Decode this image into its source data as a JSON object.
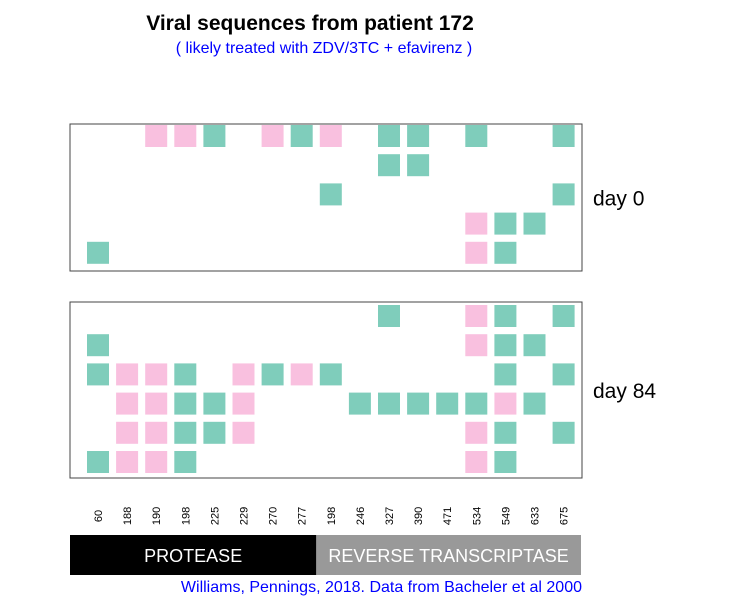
{
  "title": "Viral sequences from patient 172",
  "subtitle": "( likely treated with ZDV/3TC + efavirenz )",
  "caption": "Williams, Pennings, 2018. Data from Bacheler et al 2000",
  "colors": {
    "green": "#7fcdbb",
    "pink": "#f9c0df",
    "text_blue": "#0000ff",
    "protease_bar": "#000000",
    "rt_bar": "#999999"
  },
  "chart_data": {
    "type": "heatmap",
    "positions": [
      "60",
      "188",
      "190",
      "198",
      "225",
      "229",
      "270",
      "277",
      "198",
      "246",
      "327",
      "390",
      "471",
      "534",
      "549",
      "633",
      "675"
    ],
    "genes": [
      {
        "label": "PROTEASE",
        "start": 0,
        "end": 7
      },
      {
        "label": "REVERSE TRANSCRIPTASE",
        "start": 8,
        "end": 16
      }
    ],
    "panels": [
      {
        "label": "day 0",
        "sequences": [
          "..ppg.pgp.gg.g..g",
          "..........gg.....",
          "........g.......g",
          ".............pgg.",
          "g............pg.."
        ]
      },
      {
        "label": "day 84",
        "sequences": [
          "..........g..pg.g",
          "g............pgg.",
          "gppg.pgpg.....g.g",
          ".ppggp...gggggpg.",
          ".ppggp.......pg.g",
          "gppg.........pg.."
        ]
      }
    ]
  }
}
